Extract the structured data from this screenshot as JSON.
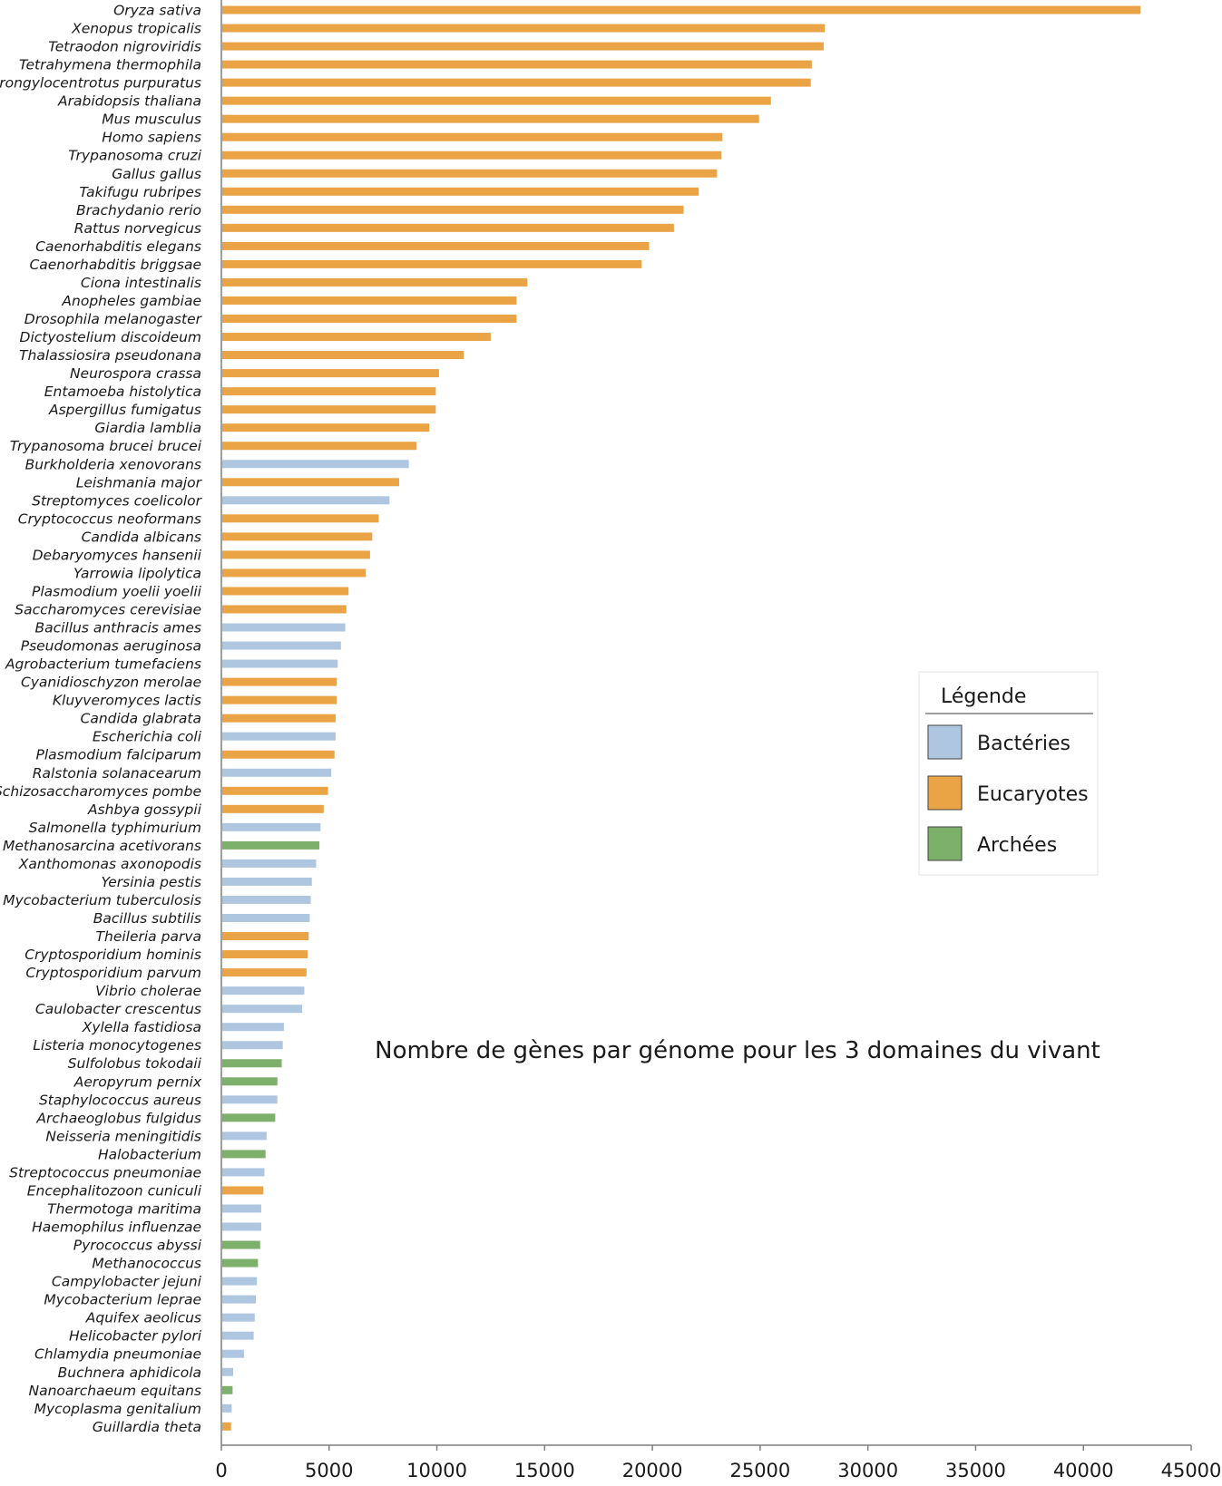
{
  "colors": {
    "Bactéries": "#aec6e0",
    "Eucaryotes": "#eaa446",
    "Archées": "#7db06a",
    "axis": "#7f7f7f",
    "legend_border": "#e3e3e3"
  },
  "chart_data": {
    "type": "bar",
    "orientation": "horizontal",
    "title": "Nombre de gènes par génome pour les 3 domaines du vivant",
    "xlabel": "",
    "ylabel": "",
    "xlim": [
      0,
      45000
    ],
    "xticks": [
      0,
      5000,
      10000,
      15000,
      20000,
      25000,
      30000,
      35000,
      40000,
      45000
    ],
    "grid": false,
    "legend": {
      "title": "Légende",
      "position": "right",
      "entries": [
        "Bactéries",
        "Eucaryotes",
        "Archées"
      ]
    },
    "categories": [
      "Oryza sativa",
      "Xenopus tropicalis",
      "Tetraodon nigroviridis",
      "Tetrahymena thermophila",
      "Strongylocentrotus purpuratus",
      "Arabidopsis thaliana",
      "Mus musculus",
      "Homo sapiens",
      "Trypanosoma cruzi",
      "Gallus gallus",
      "Takifugu rubripes",
      "Brachydanio rerio",
      "Rattus norvegicus",
      "Caenorhabditis elegans",
      "Caenorhabditis briggsae",
      "Ciona intestinalis",
      "Anopheles gambiae",
      "Drosophila melanogaster",
      "Dictyostelium discoideum",
      "Thalassiosira pseudonana",
      "Neurospora crassa",
      "Entamoeba histolytica",
      "Aspergillus fumigatus",
      "Giardia lamblia",
      "Trypanosoma brucei brucei",
      "Burkholderia xenovorans",
      "Leishmania major",
      "Streptomyces coelicolor",
      "Cryptococcus neoformans",
      "Candida albicans",
      "Debaryomyces hansenii",
      "Yarrowia lipolytica",
      "Plasmodium yoelii yoelii",
      "Saccharomyces cerevisiae",
      "Bacillus anthracis ames",
      "Pseudomonas aeruginosa",
      "Agrobacterium tumefaciens",
      "Cyanidioschyzon merolae",
      "Kluyveromyces lactis",
      "Candida glabrata",
      "Escherichia coli",
      "Plasmodium falciparum",
      "Ralstonia solanacearum",
      "Schizosaccharomyces pombe",
      "Ashbya gossypii",
      "Salmonella typhimurium",
      "Methanosarcina acetivorans",
      "Xanthomonas axonopodis",
      "Yersinia pestis",
      "Mycobacterium tuberculosis",
      "Bacillus subtilis",
      "Theileria parva",
      "Cryptosporidium hominis",
      "Cryptosporidium parvum",
      "Vibrio cholerae",
      "Caulobacter crescentus",
      "Xylella fastidiosa",
      "Listeria monocytogenes",
      "Sulfolobus tokodaii",
      "Aeropyrum pernix",
      "Staphylococcus aureus",
      "Archaeoglobus fulgidus",
      "Neisseria meningitidis",
      "Halobacterium",
      "Streptococcus pneumoniae",
      "Encephalitozoon cuniculi",
      "Thermotoga maritima",
      "Haemophilus influenzae",
      "Pyrococcus abyssi",
      "Methanococcus",
      "Campylobacter jejuni",
      "Mycobacterium leprae",
      "Aquifex aeolicus",
      "Helicobacter pylori",
      "Chlamydia pneumoniae",
      "Buchnera aphidicola",
      "Nanoarchaeum equitans",
      "Mycoplasma genitalium",
      "Guillardia theta"
    ],
    "values": [
      42650,
      28000,
      27950,
      27400,
      27350,
      25500,
      24950,
      23250,
      23200,
      23000,
      22150,
      21450,
      21000,
      19850,
      19500,
      14200,
      13700,
      13700,
      12500,
      11250,
      10100,
      9950,
      9950,
      9650,
      9050,
      8700,
      8250,
      7800,
      7300,
      7000,
      6900,
      6700,
      5900,
      5800,
      5750,
      5550,
      5400,
      5350,
      5350,
      5300,
      5300,
      5250,
      5100,
      4950,
      4750,
      4600,
      4550,
      4400,
      4200,
      4150,
      4100,
      4050,
      4000,
      3950,
      3850,
      3750,
      2900,
      2850,
      2800,
      2600,
      2600,
      2500,
      2100,
      2050,
      2000,
      1950,
      1850,
      1850,
      1800,
      1700,
      1650,
      1600,
      1550,
      1500,
      1050,
      550,
      520,
      480,
      450
    ],
    "domains": [
      "E",
      "E",
      "E",
      "E",
      "E",
      "E",
      "E",
      "E",
      "E",
      "E",
      "E",
      "E",
      "E",
      "E",
      "E",
      "E",
      "E",
      "E",
      "E",
      "E",
      "E",
      "E",
      "E",
      "E",
      "E",
      "B",
      "E",
      "B",
      "E",
      "E",
      "E",
      "E",
      "E",
      "E",
      "B",
      "B",
      "B",
      "E",
      "E",
      "E",
      "B",
      "E",
      "B",
      "E",
      "E",
      "B",
      "A",
      "B",
      "B",
      "B",
      "B",
      "E",
      "E",
      "E",
      "B",
      "B",
      "B",
      "B",
      "A",
      "A",
      "B",
      "A",
      "B",
      "A",
      "B",
      "E",
      "B",
      "B",
      "A",
      "A",
      "B",
      "B",
      "B",
      "B",
      "B",
      "B",
      "A",
      "B",
      "E"
    ],
    "domain_names": {
      "B": "Bactéries",
      "E": "Eucaryotes",
      "A": "Archées"
    },
    "annotation": "Nombre de gènes par génome pour les 3 domaines du vivant"
  }
}
